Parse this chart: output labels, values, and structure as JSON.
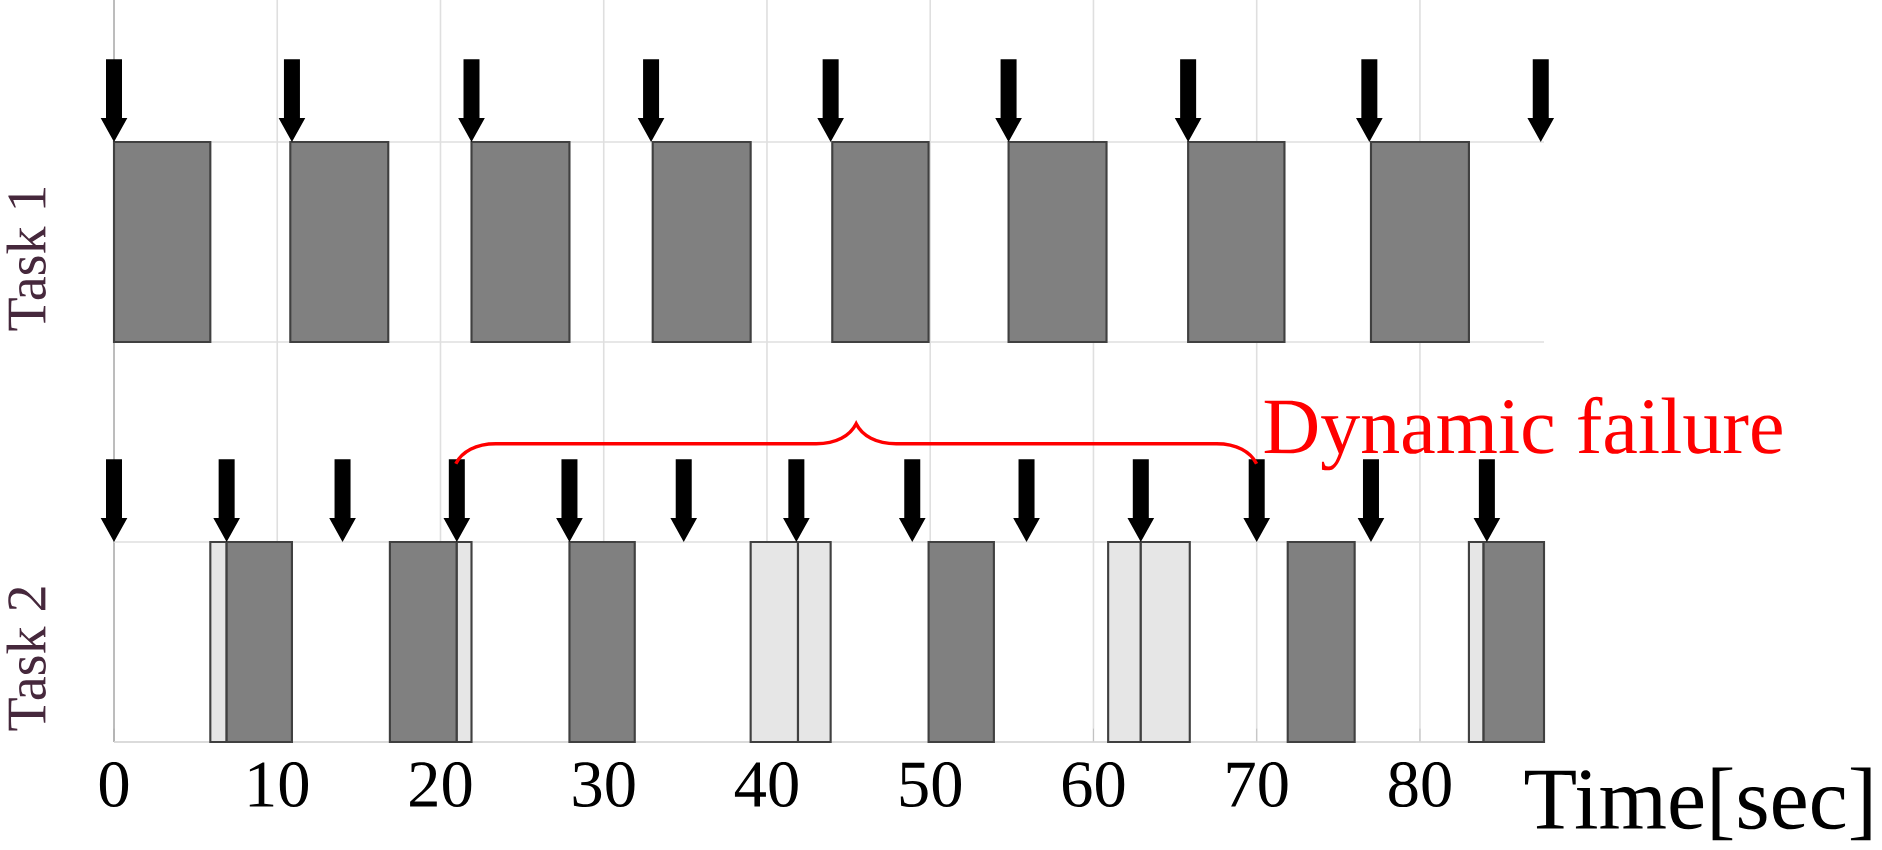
{
  "chart_data": {
    "type": "bar",
    "orientation": "horizontal",
    "categories": [
      "Task 1",
      "Task 2"
    ],
    "xlabel": "Time[sec]",
    "xlim": [
      0,
      87.6
    ],
    "xticks": [
      0,
      10,
      20,
      30,
      40,
      50,
      60,
      70,
      80
    ],
    "grid": true,
    "annotations": [
      "Dynamic failure"
    ],
    "series": [
      {
        "color": "#808080",
        "values": [
          5.9,
          null
        ],
        "base": [
          0,
          null
        ]
      },
      {
        "color": "#808080",
        "values": [
          6.0,
          null
        ],
        "base": [
          10.8,
          null
        ]
      },
      {
        "color": "#808080",
        "values": [
          6.0,
          null
        ],
        "base": [
          21.9,
          null
        ]
      },
      {
        "color": "#808080",
        "values": [
          6.0,
          null
        ],
        "base": [
          33.0,
          null
        ]
      },
      {
        "color": "#808080",
        "values": [
          5.9,
          null
        ],
        "base": [
          44.0,
          null
        ]
      },
      {
        "color": "#808080",
        "values": [
          6.0,
          null
        ],
        "base": [
          54.8,
          null
        ]
      },
      {
        "color": "#808080",
        "values": [
          5.9,
          null
        ],
        "base": [
          65.8,
          null
        ]
      },
      {
        "color": "#808080",
        "values": [
          6.0,
          null
        ],
        "base": [
          77.0,
          null
        ]
      },
      {
        "color": "#e6e6e6",
        "values": [
          null,
          1.0
        ],
        "base": [
          null,
          5.9
        ]
      },
      {
        "color": "#808080",
        "values": [
          null,
          4.0
        ],
        "base": [
          null,
          6.9
        ]
      },
      {
        "color": "#808080",
        "values": [
          null,
          4.1
        ],
        "base": [
          null,
          16.9
        ]
      },
      {
        "color": "#e6e6e6",
        "values": [
          null,
          0.9
        ],
        "base": [
          null,
          21.0
        ]
      },
      {
        "color": "#808080",
        "values": [
          null,
          4.0
        ],
        "base": [
          null,
          27.9
        ]
      },
      {
        "color": "#e6e6e6",
        "values": [
          null,
          2.9
        ],
        "base": [
          null,
          39.0
        ]
      },
      {
        "color": "#e6e6e6",
        "values": [
          null,
          2.0
        ],
        "base": [
          null,
          41.9
        ]
      },
      {
        "color": "#808080",
        "values": [
          null,
          4.0
        ],
        "base": [
          null,
          49.9
        ]
      },
      {
        "color": "#e6e6e6",
        "values": [
          null,
          2.0
        ],
        "base": [
          null,
          60.9
        ]
      },
      {
        "color": "#e6e6e6",
        "values": [
          null,
          3.0
        ],
        "base": [
          null,
          62.9
        ]
      },
      {
        "color": "#808080",
        "values": [
          null,
          4.1
        ],
        "base": [
          null,
          71.9
        ]
      },
      {
        "color": "#e6e6e6",
        "values": [
          null,
          0.9
        ],
        "base": [
          null,
          83.0
        ]
      },
      {
        "color": "#808080",
        "values": [
          null,
          3.7
        ],
        "base": [
          null,
          83.9
        ]
      },
      {
        "type": "scatter",
        "marker": "triangle",
        "color": "#000000",
        "x": [
          "Task 1",
          "Task 1",
          "Task 1",
          "Task 1",
          "Task 1",
          "Task 1",
          "Task 1",
          "Task 1",
          "Task 1"
        ],
        "values": [
          0,
          10.9,
          21.9,
          32.9,
          43.9,
          54.8,
          65.8,
          76.9,
          87.4
        ]
      },
      {
        "type": "scatter",
        "marker": "triangle",
        "color": "#000000",
        "x": [
          "Task 2",
          "Task 2",
          "Task 2",
          "Task 2",
          "Task 2",
          "Task 2",
          "Task 2",
          "Task 2",
          "Task 2",
          "Task 2",
          "Task 2",
          "Task 2",
          "Task 2"
        ],
        "values": [
          0,
          6.9,
          14.0,
          21.0,
          27.9,
          34.9,
          41.8,
          48.9,
          55.9,
          62.9,
          70.0,
          77.0,
          84.1
        ]
      }
    ]
  }
}
